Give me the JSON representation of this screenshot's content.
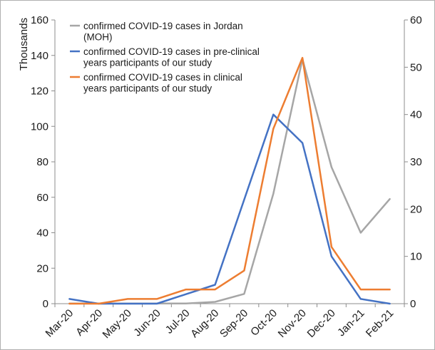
{
  "chart_data": {
    "type": "line",
    "categories": [
      "Mar-20",
      "Apr-20",
      "May-20",
      "Jun-20",
      "Jul-20",
      "Aug-20",
      "Sep-20",
      "Oct-20",
      "Nov-20",
      "Dec-20",
      "Jan-21",
      "Feb-21"
    ],
    "ylabel": "Thousands",
    "ylim": [
      0,
      160
    ],
    "yticks": [
      "0",
      "20",
      "40",
      "60",
      "80",
      "100",
      "120",
      "140",
      "160"
    ],
    "y2lim": [
      0,
      60
    ],
    "y2ticks": [
      "0",
      "10",
      "20",
      "30",
      "40",
      "50",
      "60"
    ],
    "grid": false,
    "legend_position": "top-left",
    "series": [
      {
        "name_lines": [
          "confirmed COVID-19 cases in Jordan",
          "(MOH)"
        ],
        "axis": "left",
        "color": "#a6a6a6",
        "values": [
          0.1,
          0.1,
          0.1,
          0.1,
          0.1,
          1,
          5.5,
          62,
          138,
          77,
          40,
          59
        ]
      },
      {
        "name_lines": [
          "confirmed COVID-19 cases in pre-clinical",
          "years participants of our study"
        ],
        "axis": "right",
        "color": "#4472c4",
        "values": [
          1,
          0,
          0,
          0,
          2,
          4,
          22,
          40,
          34,
          10,
          1,
          0
        ]
      },
      {
        "name_lines": [
          "confirmed COVID-19 cases in clinical",
          "years participants of our study"
        ],
        "axis": "right",
        "color": "#ed7d31",
        "values": [
          0,
          0,
          1,
          1,
          3,
          3,
          7,
          37,
          52,
          12,
          3,
          3
        ]
      }
    ]
  }
}
